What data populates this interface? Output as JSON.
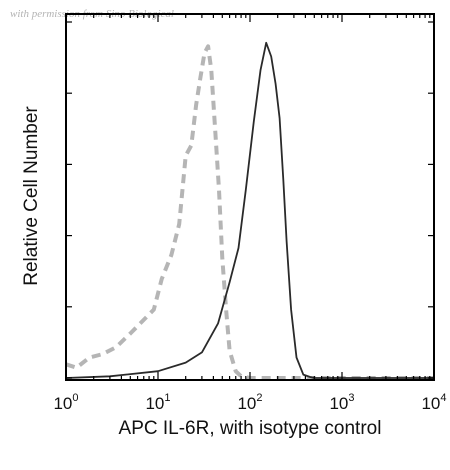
{
  "watermark": "with permission from Sino Biological",
  "chart_data": {
    "type": "line",
    "title": "",
    "xlabel": "APC IL-6R, with isotype control",
    "ylabel": "Relative Cell Number",
    "x_scale": "log",
    "xlim": [
      1,
      10000
    ],
    "ylim": [
      0,
      1
    ],
    "x_ticks": [
      {
        "base": "10",
        "exp": "0",
        "value": 1
      },
      {
        "base": "10",
        "exp": "1",
        "value": 10
      },
      {
        "base": "10",
        "exp": "2",
        "value": 100
      },
      {
        "base": "10",
        "exp": "3",
        "value": 1000
      },
      {
        "base": "10",
        "exp": "4",
        "value": 10000
      }
    ],
    "grid": false,
    "legend": "none",
    "series": [
      {
        "style": "dashed",
        "color": "#b5b5b5",
        "x": [
          1.0,
          1.3,
          1.8,
          2.5,
          3.5,
          5.0,
          7.0,
          9.0,
          11.0,
          14.0,
          17.0,
          20.0,
          23.0,
          26.0,
          29.0,
          32.0,
          35.0,
          38.0,
          42.0,
          46.0,
          50.0,
          55.0,
          60.0,
          70.0,
          80.0,
          100.0,
          200.0,
          10000.0
        ],
        "y": [
          0.04,
          0.03,
          0.06,
          0.07,
          0.09,
          0.13,
          0.17,
          0.2,
          0.29,
          0.36,
          0.45,
          0.65,
          0.68,
          0.8,
          0.88,
          0.95,
          0.97,
          0.9,
          0.72,
          0.55,
          0.35,
          0.2,
          0.08,
          0.02,
          0.005,
          0.0,
          0.0,
          0.0
        ]
      },
      {
        "style": "solid",
        "color": "#2a2a2a",
        "x": [
          1.0,
          3.0,
          10.0,
          20.0,
          30.0,
          45.0,
          60.0,
          75.0,
          90.0,
          110.0,
          130.0,
          150.0,
          170.0,
          190.0,
          210.0,
          230.0,
          250.0,
          280.0,
          320.0,
          380.0,
          450.0,
          500.0,
          600.0,
          1000.0,
          10000.0
        ],
        "y": [
          0.0,
          0.005,
          0.02,
          0.045,
          0.075,
          0.16,
          0.28,
          0.38,
          0.55,
          0.75,
          0.9,
          0.98,
          0.94,
          0.86,
          0.76,
          0.58,
          0.4,
          0.2,
          0.06,
          0.01,
          0.003,
          0.0,
          0.0,
          0.0,
          0.0
        ]
      }
    ]
  }
}
